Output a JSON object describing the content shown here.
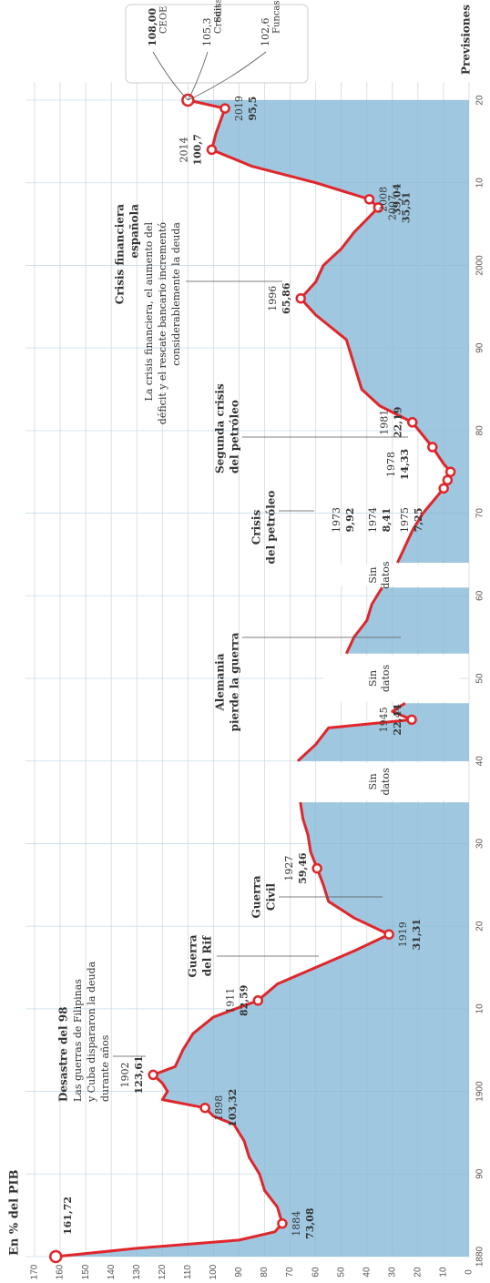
{
  "chart_data": {
    "type": "line",
    "title": "En % del PIB",
    "color": "#e0262b",
    "area_color": "#7fb6d6",
    "xlim": [
      1880,
      2020
    ],
    "ylim": [
      0,
      170
    ],
    "xticks": [
      {
        "value": 1880,
        "label": "1880"
      },
      {
        "value": 1890,
        "label": "90"
      },
      {
        "value": 1900,
        "label": "1900"
      },
      {
        "value": 1910,
        "label": "10"
      },
      {
        "value": 1920,
        "label": "20"
      },
      {
        "value": 1930,
        "label": "30"
      },
      {
        "value": 1940,
        "label": "40"
      },
      {
        "value": 1950,
        "label": "50"
      },
      {
        "value": 1960,
        "label": "60"
      },
      {
        "value": 1970,
        "label": "70"
      },
      {
        "value": 1980,
        "label": "80"
      },
      {
        "value": 1990,
        "label": "90"
      },
      {
        "value": 2000,
        "label": "2000"
      },
      {
        "value": 2010,
        "label": "10"
      },
      {
        "value": 2020,
        "label": "20"
      }
    ],
    "yticks": [
      0,
      10,
      20,
      30,
      40,
      50,
      60,
      70,
      80,
      90,
      100,
      110,
      120,
      130,
      140,
      150,
      160,
      170
    ],
    "grid": true,
    "x": [
      1880,
      1881,
      1882,
      1883,
      1884,
      1886,
      1888,
      1890,
      1892,
      1894,
      1896,
      1897,
      1898,
      1899,
      1900,
      1901,
      1902,
      1903,
      1905,
      1907,
      1909,
      1911,
      1913,
      1915,
      1917,
      1919,
      1921,
      1923,
      1925,
      1927,
      1929,
      1931,
      1933,
      1935,
      1936,
      1940,
      1942,
      1944,
      1945,
      1946,
      1947,
      1948,
      1953,
      1955,
      1957,
      1959,
      1961,
      1962,
      1964,
      1966,
      1968,
      1970,
      1973,
      1974,
      1975,
      1976,
      1978,
      1981,
      1983,
      1985,
      1988,
      1991,
      1994,
      1996,
      1998,
      2000,
      2002,
      2004,
      2007,
      2008,
      2010,
      2012,
      2014,
      2016,
      2019,
      2020
    ],
    "values": [
      161.72,
      130,
      90,
      76,
      73.08,
      75,
      80,
      82,
      86,
      88,
      92,
      100,
      103.32,
      120,
      118,
      120,
      123.61,
      115,
      112,
      108,
      100,
      82.59,
      75,
      60,
      45,
      31.31,
      45,
      55,
      57,
      59.46,
      62,
      63,
      65,
      66,
      null,
      67,
      60,
      55,
      22.44,
      30,
      25,
      null,
      48,
      45,
      40,
      38,
      34,
      null,
      28,
      25,
      22,
      18,
      9.92,
      8.41,
      7.25,
      10,
      14.33,
      22.19,
      35,
      42,
      45,
      48,
      60,
      65.86,
      60,
      57,
      50,
      45,
      35.51,
      39.04,
      60,
      85,
      100.7,
      99,
      95.5,
      110
    ],
    "value_labels": [
      "161,72",
      null,
      null,
      null,
      "73,08",
      null,
      null,
      null,
      null,
      null,
      null,
      null,
      "103,32",
      null,
      null,
      null,
      "123,61",
      null,
      null,
      null,
      null,
      "82,59",
      null,
      null,
      null,
      "31,31",
      null,
      null,
      null,
      "59,46",
      null,
      null,
      null,
      null,
      null,
      null,
      null,
      null,
      "22,44",
      null,
      null,
      null,
      null,
      null,
      null,
      null,
      null,
      null,
      null,
      null,
      null,
      null,
      "9,92",
      "8,41",
      "7,25",
      null,
      "14,33",
      "22,19",
      null,
      null,
      null,
      null,
      null,
      "65,86",
      null,
      null,
      null,
      null,
      "35,51",
      "39,04",
      null,
      null,
      "100,7",
      null,
      "95,5",
      null
    ],
    "year_labels": [
      null,
      null,
      null,
      null,
      "1884",
      null,
      null,
      null,
      null,
      null,
      null,
      null,
      "1898",
      null,
      null,
      null,
      "1902",
      null,
      null,
      null,
      null,
      "1911",
      null,
      null,
      null,
      "1919",
      null,
      null,
      null,
      "1927",
      null,
      null,
      null,
      null,
      null,
      null,
      null,
      null,
      "1945",
      null,
      null,
      null,
      null,
      null,
      null,
      null,
      null,
      null,
      null,
      null,
      null,
      null,
      "1973",
      "1974",
      "1975",
      null,
      "1978",
      "1981",
      null,
      null,
      null,
      null,
      null,
      "1996",
      null,
      null,
      null,
      null,
      "2007",
      "2008",
      null,
      null,
      "2014",
      null,
      "2019",
      null
    ],
    "no_data_labels": [
      [
        "Sin",
        "datos"
      ],
      [
        "Sin",
        "datos"
      ],
      [
        "Sin",
        "datos"
      ]
    ],
    "annotations": [
      {
        "title": [
          "Desastre del 98"
        ],
        "text": [
          "Las guerras de Filipinas",
          "y Cuba dispararon la deuda",
          "durante años"
        ]
      },
      {
        "title": [
          "Guerra",
          "del Rif"
        ]
      },
      {
        "title": [
          "Guerra",
          "Civil"
        ]
      },
      {
        "title": [
          "Alemania",
          "pierde la guerra"
        ]
      },
      {
        "title": [
          "Crisis",
          "del petróleo"
        ]
      },
      {
        "title": [
          "Segunda crisis",
          "del petróleo"
        ]
      },
      {
        "title": [
          "Crisis financiera",
          "española"
        ],
        "text": [
          "La crisis financiera, el aumento del",
          "déficit y el rescate bancario incrementó",
          "considerablemente la deuda"
        ]
      }
    ],
    "forecast_title": "Previsiones",
    "forecasts": [
      {
        "value": 108.0,
        "label": "108,00",
        "name": "CEOE"
      },
      {
        "value": 105.3,
        "label": "105,3",
        "name": [
          "Credit",
          "Suisse"
        ]
      },
      {
        "value": 102.6,
        "label": "102,6",
        "name": "Funcas"
      }
    ]
  }
}
